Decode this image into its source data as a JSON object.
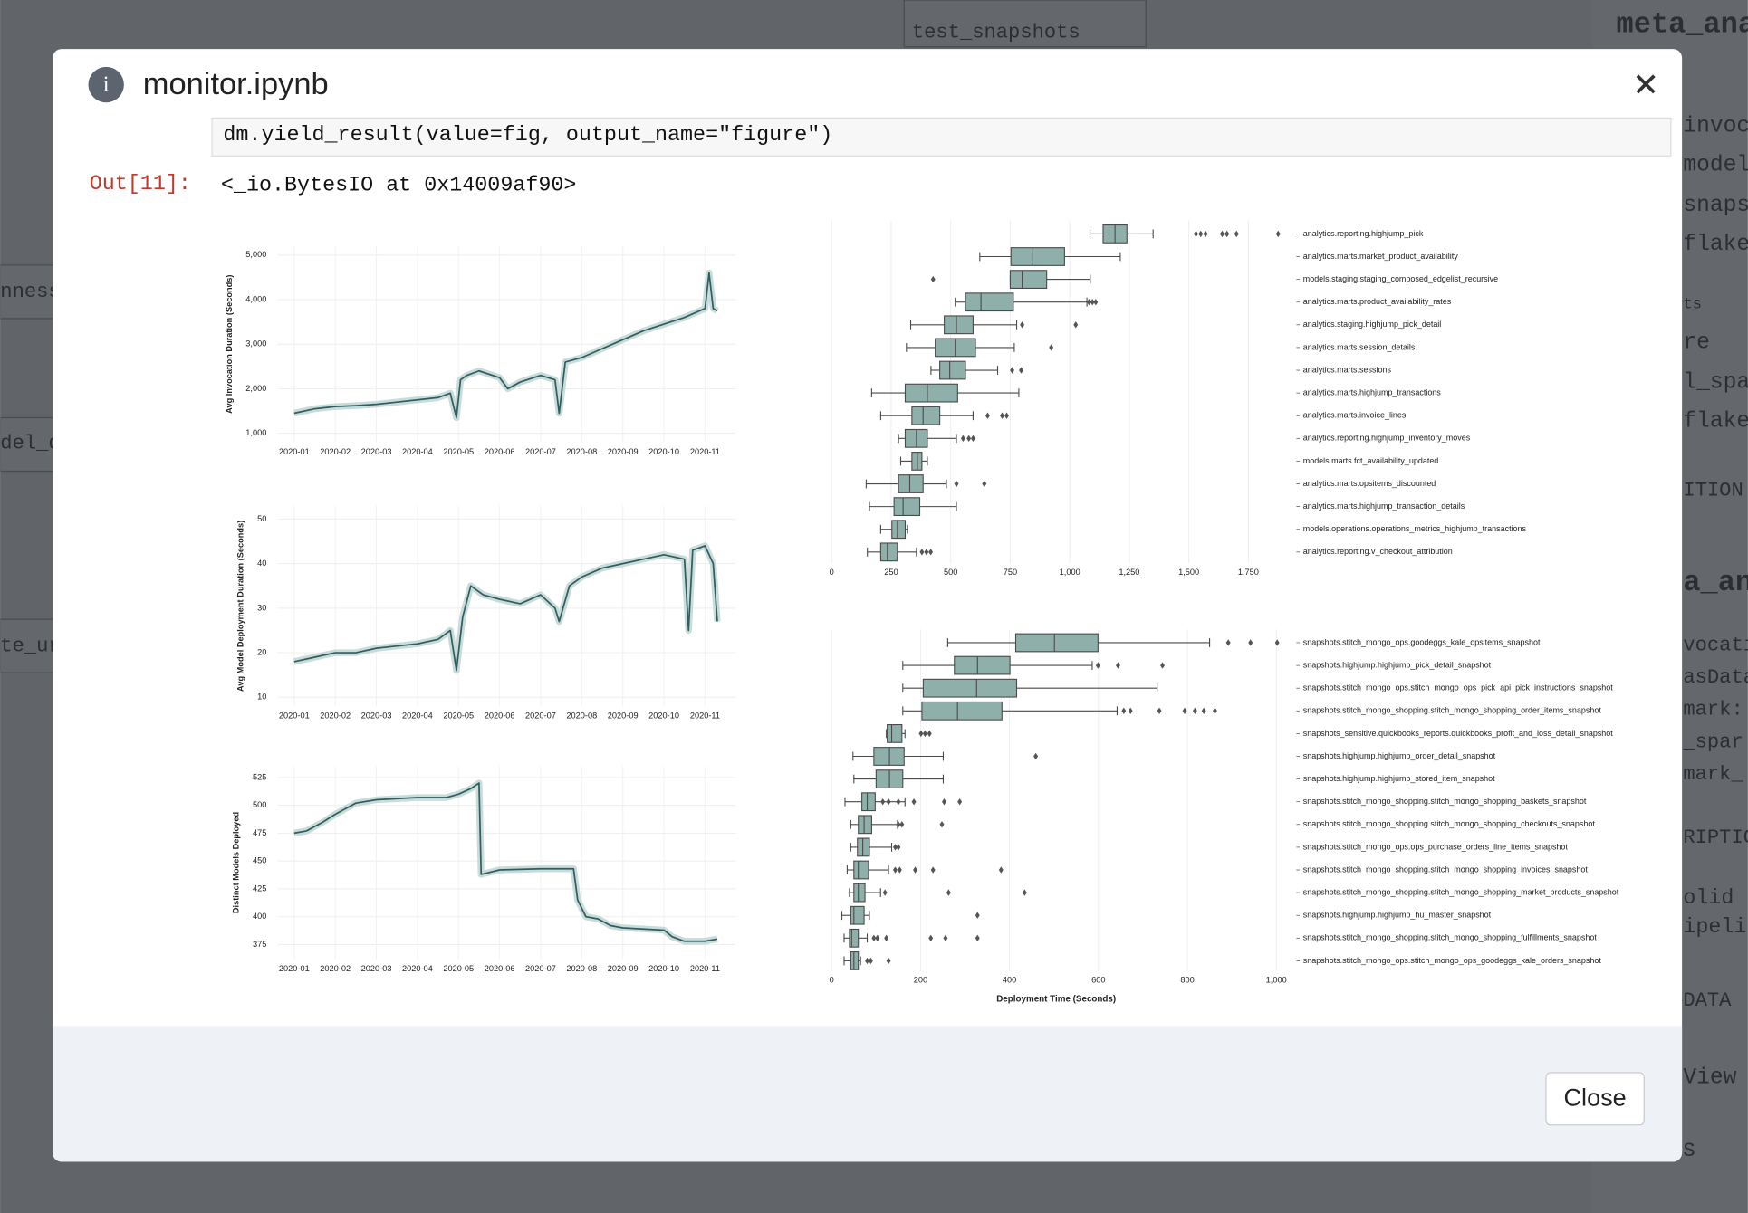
{
  "background": [
    "test_snapshots",
    "meta_ana",
    "nness",
    "del_d",
    "te_ur",
    "invoc",
    "model",
    "snaps",
    "flake",
    "ts",
    "re",
    "l_spa",
    "flake",
    "ITION",
    "a_ana",
    "vocati",
    "asData",
    "mark:",
    "_spar",
    "mark_",
    "RIPTIO",
    "olid is",
    "ipelin",
    "DATA",
    "View N",
    "S"
  ],
  "modal": {
    "title": "monitor.ipynb",
    "code": "dm.yield_result(value=fig, output_name=\"figure\")",
    "out_prompt": "Out[11]:",
    "output": "<_io.BytesIO at 0x14009af90>",
    "close_button": "Close"
  },
  "figure": {
    "charts": [
      {
        "type": "line",
        "ylabel": "Avg Invocation Duration (Seconds)",
        "color": "#2f5d60",
        "grid": true,
        "xlim": [
          -0.4,
          10.75
        ],
        "ylim": [
          800,
          5200
        ],
        "xticks": [
          {
            "value": 0,
            "label": "2020-01"
          },
          {
            "value": 1,
            "label": "2020-02"
          },
          {
            "value": 2,
            "label": "2020-03"
          },
          {
            "value": 3,
            "label": "2020-04"
          },
          {
            "value": 4,
            "label": "2020-05"
          },
          {
            "value": 5,
            "label": "2020-06"
          },
          {
            "value": 6,
            "label": "2020-07"
          },
          {
            "value": 7,
            "label": "2020-08"
          },
          {
            "value": 8,
            "label": "2020-09"
          },
          {
            "value": 9,
            "label": "2020-10"
          },
          {
            "value": 10,
            "label": "2020-11"
          }
        ],
        "yticks": [
          {
            "value": 1000,
            "label": "1,000"
          },
          {
            "value": 2000,
            "label": "2,000"
          },
          {
            "value": 3000,
            "label": "3,000"
          },
          {
            "value": 4000,
            "label": "4,000"
          },
          {
            "value": 5000,
            "label": "5,000"
          }
        ],
        "x": [
          0,
          0.5,
          1,
          1.5,
          2,
          2.5,
          3,
          3.5,
          3.8,
          3.95,
          4.05,
          4.2,
          4.5,
          5,
          5.2,
          5.5,
          6,
          6.35,
          6.45,
          6.6,
          7,
          7.5,
          8,
          8.5,
          9,
          9.5,
          10,
          10.1,
          10.2,
          10.3
        ],
        "values": [
          1450,
          1550,
          1600,
          1620,
          1650,
          1700,
          1750,
          1800,
          1900,
          1350,
          2200,
          2300,
          2400,
          2250,
          2000,
          2150,
          2300,
          2200,
          1450,
          2600,
          2700,
          2900,
          3100,
          3300,
          3450,
          3600,
          3800,
          4600,
          3800,
          3750
        ]
      },
      {
        "type": "line",
        "ylabel": "Avg Model Deployment Duration (Seconds)",
        "color": "#2f5d60",
        "grid": true,
        "xlim": [
          -0.4,
          10.75
        ],
        "ylim": [
          8,
          53
        ],
        "xticks": [
          {
            "value": 0,
            "label": "2020-01"
          },
          {
            "value": 1,
            "label": "2020-02"
          },
          {
            "value": 2,
            "label": "2020-03"
          },
          {
            "value": 3,
            "label": "2020-04"
          },
          {
            "value": 4,
            "label": "2020-05"
          },
          {
            "value": 5,
            "label": "2020-06"
          },
          {
            "value": 6,
            "label": "2020-07"
          },
          {
            "value": 7,
            "label": "2020-08"
          },
          {
            "value": 8,
            "label": "2020-09"
          },
          {
            "value": 9,
            "label": "2020-10"
          },
          {
            "value": 10,
            "label": "2020-11"
          }
        ],
        "yticks": [
          10,
          20,
          30,
          40,
          50
        ],
        "x": [
          0,
          0.5,
          1,
          1.5,
          2,
          2.5,
          3,
          3.5,
          3.8,
          3.95,
          4.1,
          4.3,
          4.6,
          5,
          5.5,
          6,
          6.35,
          6.45,
          6.7,
          7,
          7.5,
          8,
          8.5,
          9,
          9.5,
          9.6,
          9.7,
          10,
          10.2,
          10.3
        ],
        "values": [
          18,
          19,
          20,
          20,
          21,
          21.5,
          22,
          23,
          25,
          16,
          28,
          35,
          33,
          32,
          31,
          33,
          30,
          27,
          35,
          37,
          39,
          40,
          41,
          42,
          41,
          25,
          43,
          44,
          40,
          27
        ]
      },
      {
        "type": "line",
        "ylabel": "Distinct Models Deployed",
        "color": "#2f5d60",
        "grid": true,
        "xlim": [
          -0.4,
          10.75
        ],
        "ylim": [
          362,
          535
        ],
        "xticks": [
          {
            "value": 0,
            "label": "2020-01"
          },
          {
            "value": 1,
            "label": "2020-02"
          },
          {
            "value": 2,
            "label": "2020-03"
          },
          {
            "value": 3,
            "label": "2020-04"
          },
          {
            "value": 4,
            "label": "2020-05"
          },
          {
            "value": 5,
            "label": "2020-06"
          },
          {
            "value": 6,
            "label": "2020-07"
          },
          {
            "value": 7,
            "label": "2020-08"
          },
          {
            "value": 8,
            "label": "2020-09"
          },
          {
            "value": 9,
            "label": "2020-10"
          },
          {
            "value": 10,
            "label": "2020-11"
          }
        ],
        "yticks": [
          375,
          400,
          425,
          450,
          475,
          500,
          525
        ],
        "x": [
          0,
          0.3,
          0.7,
          1,
          1.5,
          2,
          2.5,
          3,
          3.7,
          4,
          4.3,
          4.5,
          4.55,
          5,
          6,
          6.8,
          6.9,
          7.1,
          7.4,
          7.7,
          8,
          9,
          9.2,
          9.5,
          10,
          10.3
        ],
        "values": [
          475,
          477,
          485,
          492,
          502,
          505,
          506,
          507,
          507,
          510,
          515,
          520,
          438,
          442,
          443,
          443,
          415,
          400,
          398,
          392,
          390,
          388,
          382,
          378,
          378,
          380
        ]
      },
      {
        "type": "box",
        "color": "#8fb0aa",
        "grid": true,
        "xlim": [
          0,
          1900
        ],
        "xticks": [
          0,
          250,
          500,
          750,
          {
            "value": 1000,
            "label": "1,000"
          },
          {
            "value": 1250,
            "label": "1,250"
          },
          {
            "value": 1500,
            "label": "1,500"
          },
          {
            "value": 1750,
            "label": "1,750"
          }
        ],
        "categories": [
          "analytics.reporting.highjump_pick",
          "analytics.marts.market_product_availability",
          "models.staging.staging_composed_edgelist_recursive",
          "analytics.marts.product_availability_rates",
          "analytics.staging.highjump_pick_detail",
          "analytics.marts.session_details",
          "analytics.marts.sessions",
          "analytics.marts.highjump_transactions",
          "analytics.marts.invoice_lines",
          "analytics.reporting.highjump_inventory_moves",
          "models.marts.fct_availability_updated",
          "analytics.marts.opsitems_discounted",
          "analytics.marts.highjump_transaction_details",
          "models.operations.operations_metrics_highjump_transactions",
          "analytics.reporting.v_checkout_attribution"
        ],
        "boxes": [
          {
            "whislo": 1085,
            "q1": 1140,
            "med": 1190,
            "q3": 1240,
            "whishi": 1350,
            "fliers": [
              1530,
              1550,
              1570,
              1640,
              1660,
              1700,
              1875
            ]
          },
          {
            "whislo": 622,
            "q1": 753,
            "med": 842,
            "q3": 978,
            "whishi": 1212,
            "fliers": []
          },
          {
            "whislo": 750,
            "q1": 750,
            "med": 800,
            "q3": 903,
            "whishi": 1086,
            "fliers": [
              426
            ]
          },
          {
            "whislo": 519,
            "q1": 562,
            "med": 627,
            "q3": 763,
            "whishi": 1072,
            "fliers": [
              1081,
              1095,
              1109
            ]
          },
          {
            "whislo": 332,
            "q1": 473,
            "med": 524,
            "q3": 594,
            "whishi": 777,
            "fliers": [
              800,
              1025
            ]
          },
          {
            "whislo": 314,
            "q1": 435,
            "med": 519,
            "q3": 604,
            "whishi": 767,
            "fliers": [
              922
            ]
          },
          {
            "whislo": 417,
            "q1": 454,
            "med": 496,
            "q3": 562,
            "whishi": 697,
            "fliers": [
              758,
              796
            ]
          },
          {
            "whislo": 168,
            "q1": 309,
            "med": 402,
            "q3": 529,
            "whishi": 786,
            "fliers": []
          },
          {
            "whislo": 206,
            "q1": 337,
            "med": 384,
            "q3": 454,
            "whishi": 594,
            "fliers": [
              655,
              716,
              735
            ]
          },
          {
            "whislo": 281,
            "q1": 309,
            "med": 356,
            "q3": 402,
            "whishi": 524,
            "fliers": [
              552,
              576,
              594
            ]
          },
          {
            "whislo": 290,
            "q1": 337,
            "med": 360,
            "q3": 379,
            "whishi": 402,
            "fliers": []
          },
          {
            "whislo": 145,
            "q1": 281,
            "med": 328,
            "q3": 384,
            "whishi": 482,
            "fliers": [
              524,
              641
            ]
          },
          {
            "whislo": 159,
            "q1": 262,
            "med": 300,
            "q3": 370,
            "whishi": 524,
            "fliers": []
          },
          {
            "whislo": 206,
            "q1": 253,
            "med": 276,
            "q3": 309,
            "whishi": 318,
            "fliers": []
          },
          {
            "whislo": 150,
            "q1": 206,
            "med": 234,
            "q3": 276,
            "whishi": 356,
            "fliers": [
              379,
              398,
              416
            ]
          }
        ]
      },
      {
        "type": "box",
        "color": "#8fb0aa",
        "grid": true,
        "xlim": [
          0,
          1010
        ],
        "xlabel": "Deployment Time (Seconds)",
        "xticks": [
          0,
          200,
          400,
          600,
          800,
          {
            "value": 1000,
            "label": "1,000"
          }
        ],
        "categories": [
          "snapshots.stitch_mongo_ops.goodeggs_kale_opsitems_snapshot",
          "snapshots.highjump.highjump_pick_detail_snapshot",
          "snapshots.stitch_mongo_ops.stitch_mongo_ops_pick_api_pick_instructions_snapshot",
          "snapshots.stitch_mongo_shopping.stitch_mongo_shopping_order_items_snapshot",
          "snapshots_sensitive.quickbooks_reports.quickbooks_profit_and_loss_detail_snapshot",
          "snapshots.highjump.highjump_order_detail_snapshot",
          "snapshots.highjump.highjump_stored_item_snapshot",
          "snapshots.stitch_mongo_shopping.stitch_mongo_shopping_baskets_snapshot",
          "snapshots.stitch_mongo_shopping.stitch_mongo_shopping_checkouts_snapshot",
          "snapshots.stitch_mongo_ops.ops_purchase_orders_line_items_snapshot",
          "snapshots.stitch_mongo_shopping.stitch_mongo_shopping_invoices_snapshot",
          "snapshots.stitch_mongo_shopping.stitch_mongo_shopping_market_products_snapshot",
          "snapshots.highjump.highjump_hu_master_snapshot",
          "snapshots.stitch_mongo_shopping.stitch_mongo_shopping_fulfillments_snapshot",
          "snapshots.stitch_mongo_ops.stitch_mongo_ops_goodeggs_kale_orders_snapshot"
        ],
        "boxes": [
          {
            "whislo": 261,
            "q1": 414,
            "med": 501,
            "q3": 599,
            "whishi": 850,
            "fliers": [
              892,
              942,
              1002
            ]
          },
          {
            "whislo": 160,
            "q1": 276,
            "med": 328,
            "q3": 401,
            "whishi": 586,
            "fliers": [
              599,
              644,
              744
            ]
          },
          {
            "whislo": 160,
            "q1": 206,
            "med": 326,
            "q3": 416,
            "whishi": 732,
            "fliers": []
          },
          {
            "whislo": 160,
            "q1": 203,
            "med": 283,
            "q3": 383,
            "whishi": 642,
            "fliers": [
              657,
              672,
              737,
              794,
              817,
              837,
              862
            ]
          },
          {
            "whislo": 123,
            "q1": 125,
            "med": 135,
            "q3": 158,
            "whishi": 165,
            "fliers": [
              201,
              210,
              220
            ]
          },
          {
            "whislo": 48,
            "q1": 95,
            "med": 130,
            "q3": 163,
            "whishi": 251,
            "fliers": [
              459
            ]
          },
          {
            "whislo": 50,
            "q1": 100,
            "med": 130,
            "q3": 160,
            "whishi": 251,
            "fliers": []
          },
          {
            "whislo": 30,
            "q1": 68,
            "med": 80,
            "q3": 98,
            "whishi": 165,
            "fliers": [
              115,
              128,
              150,
              185,
              253,
              288
            ]
          },
          {
            "whislo": 43,
            "q1": 60,
            "med": 73,
            "q3": 90,
            "whishi": 148,
            "fliers": [
              150,
              158,
              248
            ]
          },
          {
            "whislo": 43,
            "q1": 58,
            "med": 70,
            "q3": 85,
            "whishi": 135,
            "fliers": [
              143,
              150
            ]
          },
          {
            "whislo": 35,
            "q1": 50,
            "med": 60,
            "q3": 83,
            "whishi": 128,
            "fliers": [
              143,
              153,
              188,
              228,
              381
            ]
          },
          {
            "whislo": 40,
            "q1": 50,
            "med": 60,
            "q3": 75,
            "whishi": 110,
            "fliers": [
              120,
              263,
              434
            ]
          },
          {
            "whislo": 23,
            "q1": 43,
            "med": 50,
            "q3": 73,
            "whishi": 85,
            "fliers": [
              328
            ]
          },
          {
            "whislo": 28,
            "q1": 40,
            "med": 45,
            "q3": 60,
            "whishi": 80,
            "fliers": [
              95,
              103,
              123,
              223,
              256,
              328
            ]
          },
          {
            "whislo": 28,
            "q1": 43,
            "med": 50,
            "q3": 60,
            "whishi": 65,
            "fliers": [
              80,
              88,
              128
            ]
          }
        ]
      }
    ]
  }
}
